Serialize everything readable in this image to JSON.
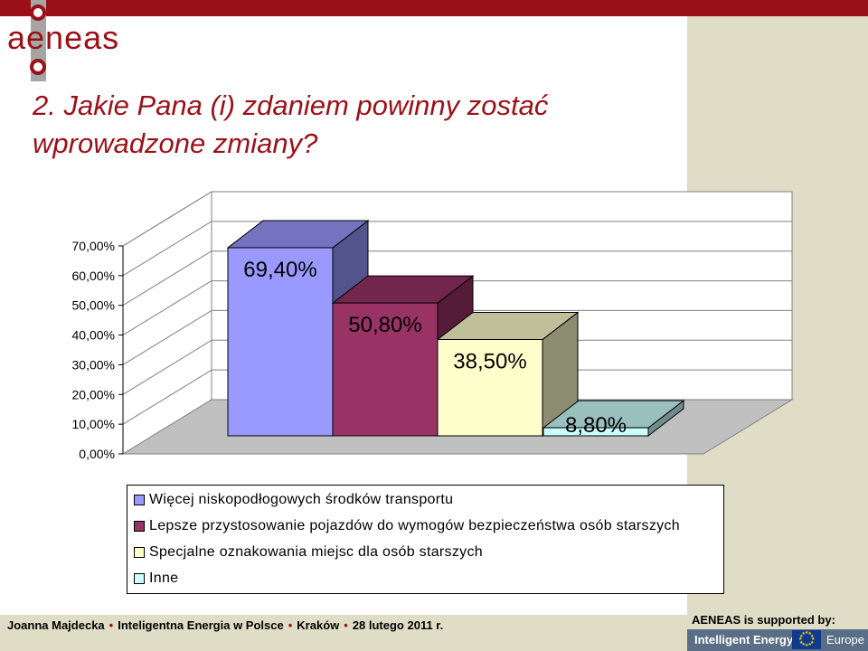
{
  "brand": {
    "logo_text": "aeneas",
    "colors": {
      "accent": "#9b1018",
      "panel": "#dfddc6"
    }
  },
  "slide": {
    "title_line1": "2. Jakie Pana (i) zdaniem powinny zostać",
    "title_line2": "wprowadzone zmiany?"
  },
  "chart_data": {
    "type": "bar",
    "three_d": true,
    "categories": [
      "Więcej niskopodłogowych środków transportu",
      "Lepsze przystosowanie pojazdów do wymogów bezpieczeństwa osób starszych",
      "Specjalne oznakowania miejsc dla osób starszych",
      "Inne"
    ],
    "values": [
      69.4,
      50.8,
      38.5,
      8.8
    ],
    "value_labels": [
      "69,40%",
      "50,80%",
      "38,50%",
      "8,80%"
    ],
    "colors": [
      "#9999ff",
      "#993366",
      "#ffffcc",
      "#ccffff"
    ],
    "ylim": [
      0,
      70
    ],
    "yticks": [
      "0,00%",
      "10,00%",
      "20,00%",
      "30,00%",
      "40,00%",
      "50,00%",
      "60,00%",
      "70,00%"
    ],
    "legend_position": "bottom",
    "grid": true
  },
  "footer": {
    "author": "Joanna Majdecka",
    "program": "Inteligentna Energia w Polsce",
    "city": "Kraków",
    "date": "28 lutego 2011 r.",
    "supported_by": "AENEAS is supported by:",
    "ie_label": "Intelligent Energy",
    "europe_label": "Europe"
  }
}
